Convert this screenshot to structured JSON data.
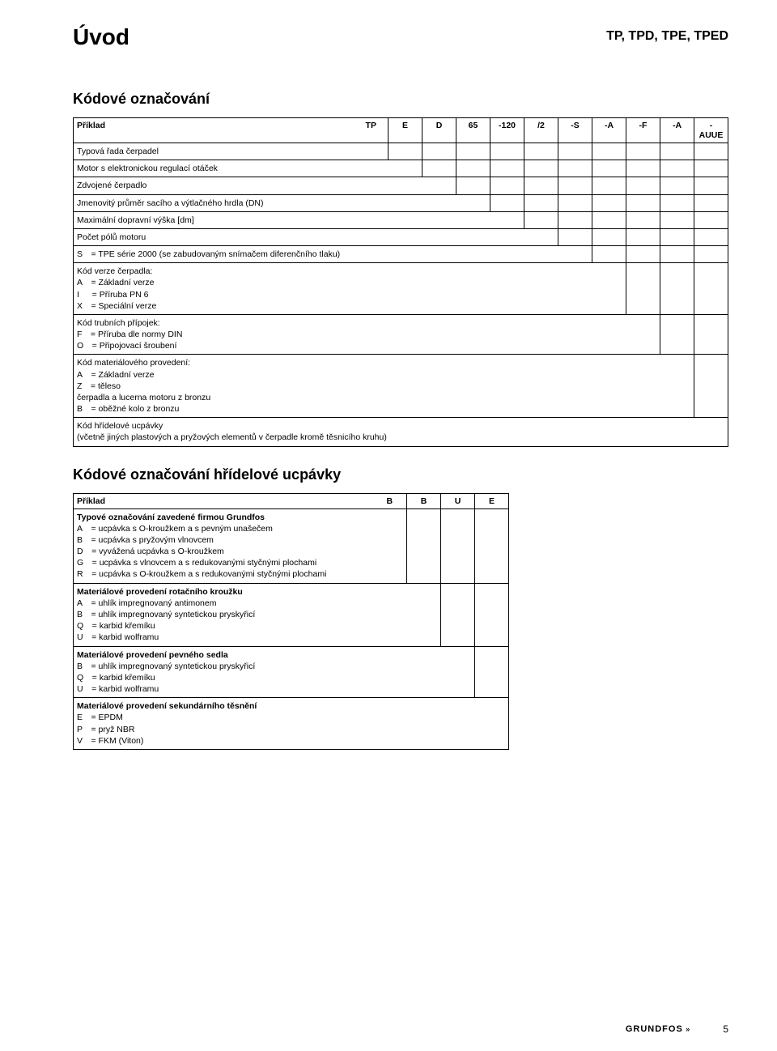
{
  "header": {
    "left": "Úvod",
    "right": "TP, TPD, TPE, TPED"
  },
  "section1": {
    "title": "Kódové označování",
    "codes": [
      "TP",
      "E",
      "D",
      "65",
      "-120",
      "/2",
      "-S",
      "-A",
      "-F",
      "-A",
      "-AUUE"
    ],
    "label_example": "Příklad",
    "rows": [
      {
        "lines": [
          "Typová řada čerpadel"
        ]
      },
      {
        "lines": [
          "Motor s elektronickou regulací otáček"
        ]
      },
      {
        "lines": [
          "Zdvojené čerpadlo"
        ]
      },
      {
        "lines": [
          "Jmenovitý průměr sacího a výtlačného hrdla (DN)"
        ]
      },
      {
        "lines": [
          "Maximální dopravní výška [dm]"
        ]
      },
      {
        "lines": [
          "Počet pólů motoru"
        ]
      },
      {
        "lines": [
          "S = TPE série 2000 (se zabudovaným snímačem diferenčního tlaku)"
        ]
      },
      {
        "lines": [
          "Kód verze čerpadla:",
          "A = Základní verze",
          "I  = Příruba PN 6",
          "X = Speciální verze"
        ]
      },
      {
        "lines": [
          "Kód trubních přípojek:",
          "F = Příruba dle normy DIN",
          "O = Připojovací šroubení"
        ]
      },
      {
        "lines": [
          "Kód materiálového provedení:",
          "A = Základní verze",
          "Z = těleso",
          "čerpadla a lucerna  motoru z bronzu",
          "B = oběžné kolo z bronzu"
        ]
      },
      {
        "lines": [
          "Kód hřídelové ucpávky",
          "(včetně jiných plastových a pryžových elementů v čerpadle kromě těsnicího kruhu)"
        ]
      }
    ]
  },
  "section2": {
    "title": "Kódové označování hřídelové ucpávky",
    "codes": [
      "B",
      "B",
      "U",
      "E"
    ],
    "label_example": "Příklad",
    "rows": [
      {
        "bold_first": true,
        "lines": [
          "Typové označování zavedené firmou Grundfos",
          "A = ucpávka s O-kroužkem a s pevným unašečem",
          "B = ucpávka s pryžovým vlnovcem",
          "D = vyvážená ucpávka s O-kroužkem",
          "G = ucpávka s vlnovcem a s redukovanými styčnými plochami",
          "R = ucpávka s O-kroužkem a s redukovanými styčnými plochami"
        ]
      },
      {
        "bold_first": true,
        "lines": [
          "Materiálové provedení rotačního kroužku",
          "A = uhlík impregnovaný antimonem",
          "B = uhlík impregnovaný syntetickou pryskyřicí",
          "Q = karbid křemíku",
          "U = karbid wolframu"
        ]
      },
      {
        "bold_first": true,
        "lines": [
          "Materiálové provedení pevného sedla",
          "B = uhlík impregnovaný syntetickou pryskyřicí",
          "Q = karbid křemíku",
          "U = karbid wolframu"
        ]
      },
      {
        "bold_first": true,
        "lines": [
          "Materiálové provedení sekundárního těsnění",
          "E = EPDM",
          "P = pryž NBR",
          "V = FKM (Viton)"
        ]
      }
    ]
  },
  "footer": {
    "logo": "GRUNDFOS",
    "page": "5"
  },
  "style": {
    "text_color": "#000000",
    "bg_color": "#ffffff",
    "border_color": "#000000",
    "font_family": "Arial, sans-serif",
    "title_fontsize": 28,
    "subtitle_fontsize": 18,
    "body_fontsize": 10.5
  }
}
